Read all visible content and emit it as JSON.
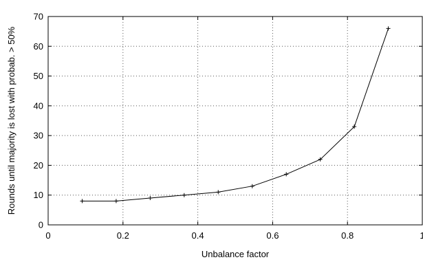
{
  "chart_data": {
    "type": "line",
    "xlabel": "Unbalance factor",
    "ylabel": "Rounds until majority is lost with probab. > 50%",
    "xlim": [
      0,
      1
    ],
    "ylim": [
      0,
      70
    ],
    "xticks": [
      0,
      0.2,
      0.4,
      0.6,
      0.8,
      1
    ],
    "yticks": [
      0,
      10,
      20,
      30,
      40,
      50,
      60,
      70
    ],
    "xtick_labels": [
      "0",
      "0.2",
      "0.4",
      "0.6",
      "0.8",
      "1"
    ],
    "ytick_labels": [
      "0",
      "10",
      "20",
      "30",
      "40",
      "50",
      "60",
      "70"
    ],
    "grid": true,
    "marker": "plus",
    "series": [
      {
        "color": "#000000",
        "x": [
          0.0909,
          0.1818,
          0.2727,
          0.3636,
          0.4545,
          0.5455,
          0.6364,
          0.7273,
          0.8182,
          0.9091
        ],
        "y": [
          8,
          8,
          9,
          10,
          11,
          13,
          17,
          22,
          33,
          66
        ]
      }
    ]
  }
}
